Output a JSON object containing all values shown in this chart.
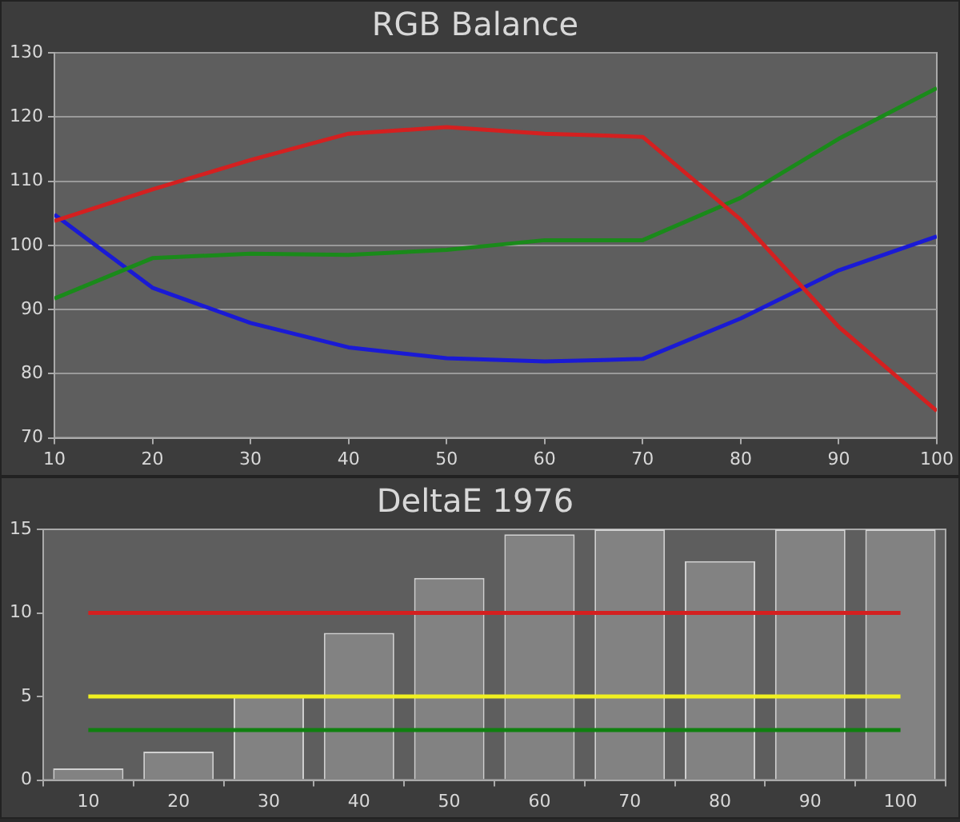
{
  "chart_data": [
    {
      "type": "line",
      "title": "RGB Balance",
      "x": [
        10,
        20,
        30,
        40,
        50,
        60,
        70,
        80,
        90,
        100
      ],
      "xlim": [
        10,
        100
      ],
      "xticks": [
        10,
        20,
        30,
        40,
        50,
        60,
        70,
        80,
        90,
        100
      ],
      "ylim": [
        70,
        130
      ],
      "yticks": [
        70,
        80,
        90,
        100,
        110,
        120,
        130
      ],
      "grid": "y",
      "series": [
        {
          "color": "#d42020",
          "values": [
            103.8,
            108.7,
            113.3,
            117.4,
            118.4,
            117.4,
            116.9,
            104,
            87.3,
            74.2
          ]
        },
        {
          "color": "#1a8a1a",
          "values": [
            91.7,
            98,
            98.7,
            98.5,
            99.3,
            100.8,
            100.8,
            107.4,
            116.6,
            124.5
          ]
        },
        {
          "color": "#1a1ad4",
          "values": [
            104.8,
            93.4,
            87.9,
            84.1,
            82.4,
            81.9,
            82.3,
            88.6,
            96.1,
            101.4
          ]
        }
      ]
    },
    {
      "type": "bar",
      "title": "DeltaE 1976",
      "categories": [
        "10",
        "20",
        "30",
        "40",
        "50",
        "60",
        "70",
        "80",
        "90",
        "100"
      ],
      "values": [
        0.7,
        1.7,
        5,
        8.8,
        12.1,
        14.7,
        15,
        13.1,
        15,
        15
      ],
      "color": "#828282",
      "ylim": [
        0,
        15
      ],
      "yticks": [
        0,
        5,
        10,
        15
      ],
      "ref_lines": [
        {
          "axis": "y",
          "value": 10,
          "color": "#d42020"
        },
        {
          "axis": "y",
          "value": 5,
          "color": "#f0f020"
        },
        {
          "axis": "y",
          "value": 3,
          "color": "#108010"
        }
      ]
    }
  ]
}
